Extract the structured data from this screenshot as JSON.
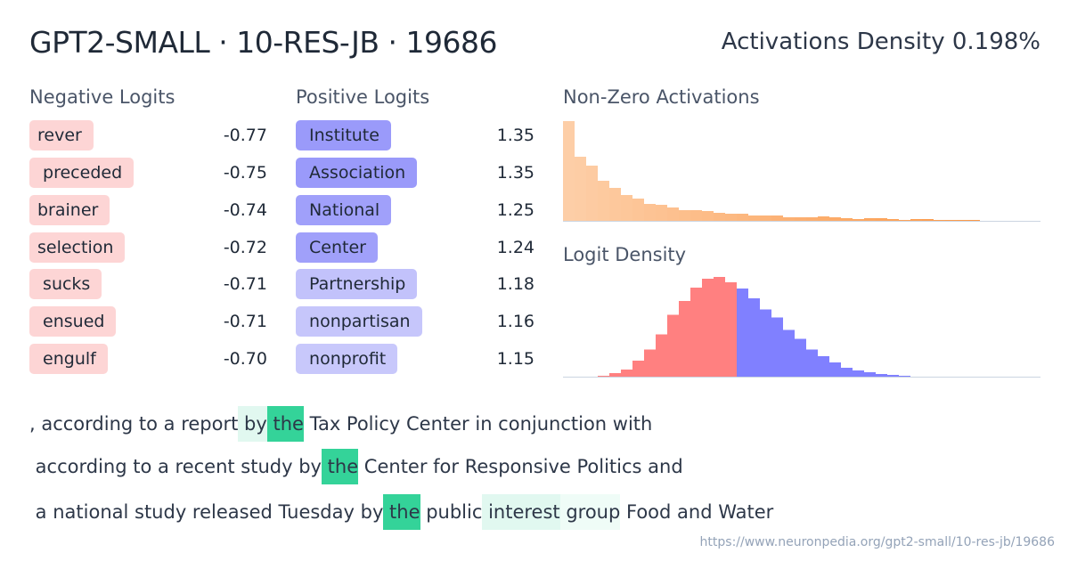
{
  "header": {
    "title": "GPT2-SMALL · 10-RES-JB · 19686",
    "density_label": "Activations Density 0.198%"
  },
  "negative_logits": {
    "title": "Negative Logits",
    "color": "#fdd5d5",
    "items": [
      {
        "token": "rever",
        "value": "-0.77"
      },
      {
        "token": " preceded",
        "value": "-0.75"
      },
      {
        "token": "brainer",
        "value": "-0.74"
      },
      {
        "token": "selection",
        "value": "-0.72"
      },
      {
        "token": " sucks",
        "value": "-0.71"
      },
      {
        "token": " ensued",
        "value": "-0.71"
      },
      {
        "token": " engulf",
        "value": "-0.70"
      }
    ]
  },
  "positive_logits": {
    "title": "Positive Logits",
    "items": [
      {
        "token": " Institute",
        "value": "1.35",
        "color": "#9a9afa"
      },
      {
        "token": " Association",
        "value": "1.35",
        "color": "#9a9afa"
      },
      {
        "token": " National",
        "value": "1.25",
        "color": "#a0a0fa"
      },
      {
        "token": " Center",
        "value": "1.24",
        "color": "#a0a0fa"
      },
      {
        "token": " Partnership",
        "value": "1.18",
        "color": "#c2c2fb"
      },
      {
        "token": " nonpartisan",
        "value": "1.16",
        "color": "#c6c6fb"
      },
      {
        "token": " nonprofit",
        "value": "1.15",
        "color": "#c8c8fb"
      }
    ]
  },
  "activations_histogram": {
    "title": "Non-Zero Activations",
    "color": "#fdba74",
    "values": [
      112,
      72,
      62,
      45,
      37,
      29,
      25,
      19,
      18,
      15,
      12,
      12,
      11,
      9,
      8,
      8,
      6,
      6,
      6,
      4,
      4,
      4,
      5,
      4,
      3,
      2,
      3,
      3,
      2,
      1,
      2,
      2,
      1,
      1,
      1,
      1
    ]
  },
  "logit_density": {
    "title": "Logit Density",
    "negative_color": "#ff8080",
    "positive_color": "#8080ff",
    "negative_values": [
      1,
      4,
      8,
      18,
      30,
      47,
      69,
      84,
      99,
      109,
      111,
      105
    ],
    "positive_values": [
      98,
      87,
      75,
      66,
      52,
      42,
      30,
      23,
      16,
      10,
      7,
      5,
      3,
      2,
      1
    ]
  },
  "examples": [
    [
      {
        "text": ", according to a report",
        "level": 0
      },
      {
        "text": " by",
        "level": 0.15
      },
      {
        "text": " the",
        "level": 1
      },
      {
        "text": " Tax Policy Center in conjunction with",
        "level": 0
      }
    ],
    [
      {
        "text": " according to a recent study by",
        "level": 0
      },
      {
        "text": " the",
        "level": 1
      },
      {
        "text": " Center for Responsive Politics and",
        "level": 0
      }
    ],
    [
      {
        "text": " a national study released Tuesday by",
        "level": 0
      },
      {
        "text": " the",
        "level": 1
      },
      {
        "text": " public",
        "level": 0
      },
      {
        "text": " interest",
        "level": 0.15
      },
      {
        "text": " group",
        "level": 0.08
      },
      {
        "text": " Food and Water",
        "level": 0
      }
    ]
  ],
  "highlight_color": "#34d399",
  "footer": {
    "url": "https://www.neuronpedia.org/gpt2-small/10-res-jb/19686"
  }
}
